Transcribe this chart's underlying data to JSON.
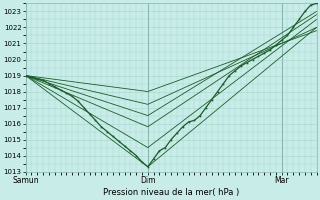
{
  "xlabel": "Pression niveau de la mer( hPa )",
  "bg_color": "#c8ede8",
  "grid_color": "#a8d4cc",
  "line_color": "#1a5c28",
  "ylim": [
    1013,
    1023.5
  ],
  "ytick_min": 1013,
  "ytick_max": 1023,
  "xtick_labels": [
    "Samun",
    "Dim",
    "Mar"
  ],
  "xtick_positions": [
    0.0,
    0.42,
    0.88
  ],
  "vlines": [
    0.0,
    0.42,
    0.88
  ],
  "main_series": {
    "x": [
      0.0,
      0.02,
      0.04,
      0.06,
      0.08,
      0.1,
      0.12,
      0.14,
      0.16,
      0.18,
      0.2,
      0.22,
      0.24,
      0.26,
      0.28,
      0.3,
      0.32,
      0.34,
      0.36,
      0.38,
      0.4,
      0.42,
      0.44,
      0.46,
      0.48,
      0.5,
      0.52,
      0.54,
      0.56,
      0.58,
      0.6,
      0.62,
      0.64,
      0.66,
      0.68,
      0.7,
      0.72,
      0.74,
      0.76,
      0.78,
      0.8,
      0.82,
      0.84,
      0.86,
      0.88,
      0.9,
      0.92,
      0.94,
      0.96,
      0.98,
      1.0
    ],
    "y": [
      1019.0,
      1018.9,
      1018.8,
      1018.7,
      1018.5,
      1018.3,
      1018.1,
      1017.9,
      1017.7,
      1017.4,
      1017.0,
      1016.6,
      1016.2,
      1015.8,
      1015.5,
      1015.2,
      1014.9,
      1014.6,
      1014.3,
      1014.0,
      1013.6,
      1013.3,
      1013.8,
      1014.3,
      1014.5,
      1015.0,
      1015.4,
      1015.8,
      1016.1,
      1016.2,
      1016.5,
      1017.0,
      1017.5,
      1018.0,
      1018.5,
      1019.0,
      1019.3,
      1019.6,
      1019.8,
      1020.0,
      1020.2,
      1020.4,
      1020.6,
      1020.9,
      1021.2,
      1021.5,
      1022.0,
      1022.5,
      1023.0,
      1023.4,
      1023.5
    ]
  },
  "forecast_lines": [
    {
      "x": [
        0.0,
        0.42,
        1.0
      ],
      "y": [
        1019.0,
        1013.3,
        1022.0
      ]
    },
    {
      "x": [
        0.0,
        0.42,
        1.0
      ],
      "y": [
        1019.0,
        1014.5,
        1022.5
      ]
    },
    {
      "x": [
        0.0,
        0.42,
        1.0
      ],
      "y": [
        1019.0,
        1015.8,
        1022.8
      ]
    },
    {
      "x": [
        0.0,
        0.42,
        1.0
      ],
      "y": [
        1019.0,
        1016.5,
        1023.0
      ]
    },
    {
      "x": [
        0.0,
        0.42,
        1.0
      ],
      "y": [
        1019.0,
        1017.2,
        1022.0
      ]
    },
    {
      "x": [
        0.0,
        0.42,
        1.0
      ],
      "y": [
        1019.0,
        1018.0,
        1021.8
      ]
    }
  ]
}
